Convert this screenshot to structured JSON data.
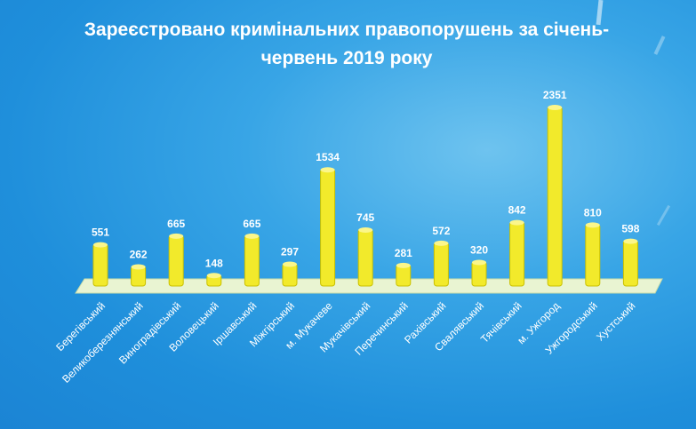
{
  "chart_data": {
    "type": "bar",
    "title_lines": [
      "Зареєстровано кримінальних правопорушень за січень-",
      "червень 2019 року"
    ],
    "categories": [
      "Берегівський",
      "Великоберезнянський",
      "Виноградівський",
      "Воловецький",
      "Іршавський",
      "Міжгірський",
      "м. Мукачеве",
      "Мукачівський",
      "Перечинський",
      "Рахівський",
      "Свалявський",
      "Тячівський",
      "м. Ужгород",
      "Ужгородський",
      "Хустський"
    ],
    "values": [
      551,
      262,
      665,
      148,
      665,
      297,
      1534,
      745,
      281,
      572,
      320,
      842,
      2351,
      810,
      598
    ],
    "data_labels": [
      "551",
      "262",
      "665",
      "148",
      "665",
      "297",
      "1534",
      "745",
      "281",
      "572",
      "320",
      "842",
      "2351",
      "810",
      "598"
    ],
    "xlabel": "",
    "ylabel": "",
    "ylim": [
      0,
      2400
    ],
    "grid": false,
    "colors": {
      "bar": "#f2ea2b",
      "bar_shade": "#c9c000",
      "floor": "#e9f4d2",
      "background": "#2797e0",
      "text": "#ffffff"
    }
  }
}
